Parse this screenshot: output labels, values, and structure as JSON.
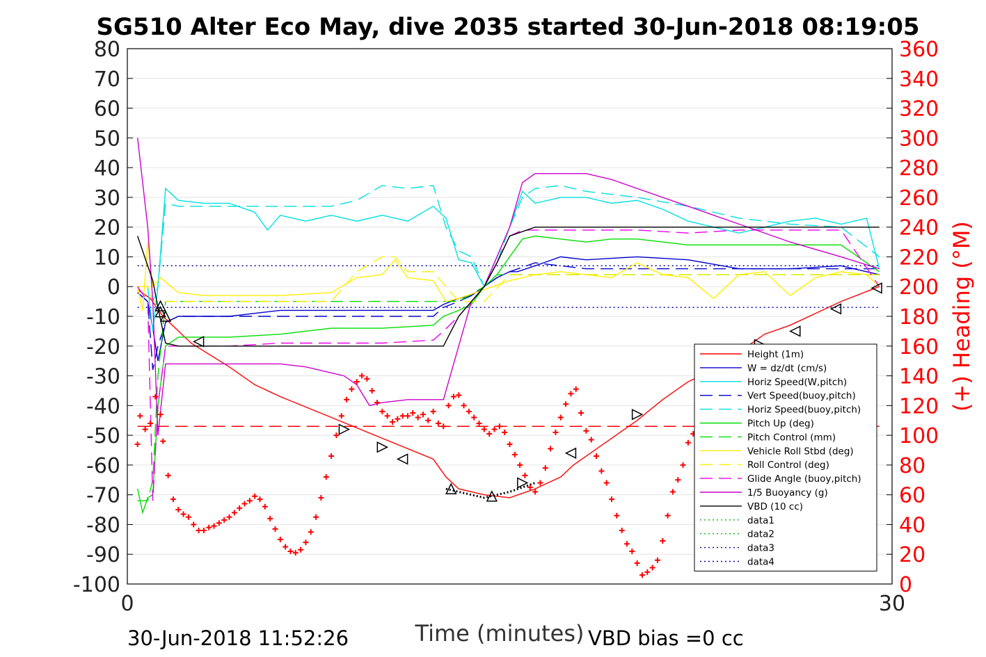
{
  "chart_data": {
    "type": "line",
    "title": "SG510 Alter Eco May, dive 2035 started 30-Jun-2018 08:19:05",
    "xlabel": "Time (minutes)",
    "ylabel_right": "(+) Heading (°M)",
    "xlim": [
      0,
      30
    ],
    "ylim": [
      -100,
      80
    ],
    "ylim_right": [
      0,
      360
    ],
    "x_ticks": [
      "0",
      "30"
    ],
    "y_ticks": [
      "80",
      "70",
      "60",
      "50",
      "40",
      "30",
      "20",
      "10",
      "0",
      "-10",
      "-20",
      "-30",
      "-40",
      "-50",
      "-60",
      "-70",
      "-80",
      "-90",
      "-100"
    ],
    "y_right_ticks": [
      "360",
      "340",
      "320",
      "300",
      "280",
      "260",
      "240",
      "220",
      "200",
      "180",
      "160",
      "140",
      "120",
      "100",
      "80",
      "60",
      "40",
      "20",
      "0"
    ],
    "grid": "horizontal",
    "legend_placement": "lower-right",
    "footer_left": "30-Jun-2018 11:52:26",
    "footer_right": "VBD bias =0 cc",
    "legend": [
      {
        "label": "Height (1m)",
        "color": "#ff0000",
        "style": "solid"
      },
      {
        "label": "W = dz/dt (cm/s)",
        "color": "#0000cc",
        "style": "solid"
      },
      {
        "label": "Horiz Speed(W,pitch)",
        "color": "#00e0e0",
        "style": "solid"
      },
      {
        "label": "Vert Speed(buoy,pitch)",
        "color": "#0000cc",
        "style": "dashed"
      },
      {
        "label": "Horiz Speed(buoy,pitch)",
        "color": "#00e0e0",
        "style": "dashed"
      },
      {
        "label": "Pitch Up (deg)",
        "color": "#00dd00",
        "style": "solid"
      },
      {
        "label": "Pitch Control (mm)",
        "color": "#00dd00",
        "style": "dashed"
      },
      {
        "label": "Vehicle Roll Stbd (deg)",
        "color": "#ffee00",
        "style": "solid"
      },
      {
        "label": "Roll Control (deg)",
        "color": "#ffee00",
        "style": "dashed"
      },
      {
        "label": "Glide Angle (buoy,pitch)",
        "color": "#ee00ee",
        "style": "dashed"
      },
      {
        "label": "1/5 Buoyancy (g)",
        "color": "#cc00cc",
        "style": "solid"
      },
      {
        "label": "VBD (10 cc)",
        "color": "#000000",
        "style": "solid"
      },
      {
        "label": "data1",
        "color": "#00bb00",
        "style": "dotted"
      },
      {
        "label": "data2",
        "color": "#00bb00",
        "style": "dotted"
      },
      {
        "label": "data3",
        "color": "#000099",
        "style": "dotted"
      },
      {
        "label": "data4",
        "color": "#0000cc",
        "style": "dotted"
      }
    ],
    "series": [
      {
        "name": "Height (1m)",
        "color": "#ff0000",
        "style": "solid",
        "x": [
          0.4,
          0.9,
          1.4,
          2.5,
          4,
          5,
          6,
          8,
          10,
          12,
          12.5,
          13,
          14,
          15,
          16,
          17,
          17.5,
          18,
          19,
          20,
          21,
          22,
          23,
          24,
          25,
          26,
          27,
          28,
          29.5
        ],
        "y": [
          -1,
          -4,
          -10,
          -19,
          -27,
          -33,
          -37,
          -44,
          -51,
          -58,
          -64,
          -68,
          -70,
          -71,
          -68,
          -64,
          -60,
          -57,
          -51,
          -45,
          -38,
          -32,
          -28,
          -22,
          -16,
          -13,
          -9,
          -5,
          0
        ]
      },
      {
        "name": "W = dz/dt (cm/s)",
        "color": "#0000cc",
        "style": "solid",
        "x": [
          0.4,
          0.8,
          1.0,
          1.2,
          1.5,
          2,
          4,
          6,
          8,
          10,
          12,
          12.4,
          13,
          13.5,
          14,
          14.5,
          15,
          15.3,
          16,
          17,
          18,
          20,
          22,
          24,
          26,
          28,
          29.5
        ],
        "y": [
          -2,
          -5,
          -14,
          -25,
          -12,
          -10,
          -10,
          -8,
          -8,
          -8,
          -8,
          -6,
          -4,
          -3,
          0,
          3,
          5,
          5,
          7,
          10,
          9,
          10,
          9,
          6,
          6,
          7,
          4
        ]
      },
      {
        "name": "Horiz Speed(W,pitch)",
        "color": "#00e0e0",
        "style": "solid",
        "x": [
          0.4,
          0.8,
          1.0,
          1.2,
          1.5,
          2,
          3,
          4,
          5,
          5.5,
          6,
          7,
          8,
          9,
          10,
          11,
          12,
          12.5,
          13,
          13.5,
          14,
          14.5,
          15,
          15.5,
          16,
          17,
          18,
          19,
          20,
          21,
          22,
          23,
          24,
          25,
          26,
          27,
          28,
          29,
          29.5
        ],
        "y": [
          0,
          0,
          -15,
          0,
          33,
          29,
          28,
          28,
          25,
          19,
          24,
          22,
          24,
          22,
          24,
          22,
          27,
          23,
          9,
          8,
          0,
          10,
          20,
          32,
          28,
          30,
          30,
          28,
          29,
          26,
          22,
          20,
          18,
          20,
          22,
          23,
          21,
          23,
          6
        ]
      },
      {
        "name": "Vert Speed(buoy,pitch)",
        "color": "#0000cc",
        "style": "dashed",
        "x": [
          0.4,
          0.8,
          1.0,
          1.2,
          1.5,
          2,
          4,
          6,
          8,
          10,
          12,
          12.4,
          13,
          13.5,
          14,
          14.5,
          15,
          16,
          17,
          18,
          20,
          22,
          24,
          26,
          28,
          29.5
        ],
        "y": [
          -2,
          -5,
          -28,
          -20,
          -12,
          -10,
          -10,
          -10,
          -10,
          -10,
          -10,
          -7,
          -5,
          -3,
          0,
          3,
          5,
          8,
          7,
          6,
          6,
          6,
          6,
          6,
          6,
          6
        ]
      },
      {
        "name": "Horiz Speed(buoy,pitch)",
        "color": "#00e0e0",
        "style": "dashed",
        "x": [
          0.4,
          0.8,
          1.0,
          1.2,
          1.5,
          2,
          4,
          6,
          8,
          9,
          10,
          11,
          12,
          12.5,
          13,
          13.5,
          14,
          14.5,
          15,
          15.5,
          16,
          17,
          18,
          20,
          22,
          24,
          26,
          28,
          29.5
        ],
        "y": [
          0,
          0,
          -5,
          0,
          28,
          27,
          27,
          27,
          27,
          29,
          34,
          33,
          34,
          20,
          12,
          10,
          0,
          8,
          20,
          30,
          33,
          34,
          32,
          30,
          27,
          23,
          21,
          20,
          10
        ]
      },
      {
        "name": "Pitch Up (deg)",
        "color": "#00dd00",
        "style": "solid",
        "x": [
          0.4,
          0.6,
          0.8,
          1.0,
          1.2,
          1.5,
          2,
          4,
          6,
          8,
          10,
          12,
          12.4,
          13,
          13.5,
          14,
          14.5,
          15,
          15.5,
          16,
          17,
          18,
          19,
          20,
          22,
          24,
          26,
          28,
          29.5
        ],
        "y": [
          -68,
          -76,
          -71,
          -70,
          -40,
          -20,
          -17,
          -17,
          -16,
          -14,
          -14,
          -13,
          -10,
          -8,
          -6,
          0,
          4,
          10,
          16,
          17,
          16,
          15,
          16,
          16,
          14,
          14,
          14,
          14,
          5
        ]
      },
      {
        "name": "Pitch Control (mm)",
        "color": "#00dd00",
        "style": "dashed",
        "x": [
          0.4,
          0.8,
          1.0,
          1.2,
          1.5,
          2,
          12,
          12.4,
          13,
          14,
          14.5,
          15,
          16,
          17,
          18,
          20,
          22,
          24,
          26,
          28,
          29.5
        ],
        "y": [
          -72,
          -72,
          -65,
          -30,
          -5,
          -5,
          -5,
          -5,
          -5,
          0,
          4,
          4,
          4,
          4,
          4,
          4,
          4,
          4,
          4,
          4,
          4
        ]
      },
      {
        "name": "Vehicle Roll Stbd (deg)",
        "color": "#ffee00",
        "style": "solid",
        "x": [
          0.4,
          0.6,
          0.8,
          1.0,
          1.3,
          2,
          3,
          4,
          6,
          8,
          9,
          10,
          10.5,
          11,
          12,
          12.5,
          13,
          14,
          15,
          16,
          17,
          18,
          19,
          20,
          21,
          22,
          23,
          24,
          25,
          26,
          27,
          28,
          29,
          29.5
        ],
        "y": [
          0,
          -8,
          15,
          0,
          3,
          -2,
          -3,
          -3,
          -3,
          -2,
          3,
          4,
          9,
          3,
          2,
          -5,
          -4,
          -1,
          2,
          4,
          5,
          4,
          3,
          8,
          4,
          3,
          -4,
          4,
          5,
          -3,
          3,
          5,
          4,
          0
        ]
      },
      {
        "name": "Roll Control (deg)",
        "color": "#ffee00",
        "style": "dashed",
        "x": [
          0.4,
          0.8,
          1.0,
          1.2,
          2,
          4,
          6,
          8,
          9,
          10,
          10.5,
          11,
          12,
          13,
          14,
          15,
          16,
          18,
          20,
          22,
          24,
          26,
          28,
          29.5
        ],
        "y": [
          0,
          0,
          -5,
          -5,
          -5,
          -5,
          -5,
          -5,
          5,
          10,
          10,
          5,
          5,
          -5,
          -5,
          4,
          4,
          4,
          4,
          4,
          4,
          4,
          4,
          4
        ]
      },
      {
        "name": "Glide Angle (buoy,pitch)",
        "color": "#ee00ee",
        "style": "dashed",
        "x": [
          0.4,
          0.8,
          1.0,
          1.2,
          1.5,
          2,
          4,
          6,
          8,
          10,
          12,
          12.4,
          13,
          13.5,
          14,
          14.5,
          15,
          15.5,
          16,
          18,
          20,
          22,
          24,
          26,
          28,
          29.5
        ],
        "y": [
          0,
          -5,
          -72,
          -40,
          -20,
          -20,
          -20,
          -19,
          -19,
          -19,
          -18,
          -15,
          -10,
          -5,
          0,
          8,
          17,
          19,
          19,
          19,
          19,
          18,
          19,
          19,
          19,
          0
        ]
      },
      {
        "name": "1/5 Buoyancy (g)",
        "color": "#cc00cc",
        "style": "solid",
        "x": [
          0.4,
          0.8,
          1.0,
          1.2,
          1.5,
          2,
          3,
          4,
          5,
          6,
          7,
          8,
          8.5,
          9,
          9.5,
          10,
          11,
          12,
          12.4,
          13,
          13.5,
          14,
          14.5,
          15,
          15.5,
          16,
          17,
          18,
          19,
          20,
          22,
          24,
          26,
          28,
          29.5
        ],
        "y": [
          50,
          20,
          -5,
          -50,
          -26,
          -26,
          -26,
          -26,
          -26,
          -26,
          -27,
          -29,
          -30,
          -33,
          -40,
          -39,
          -38,
          -38,
          -38,
          -20,
          -5,
          0,
          10,
          20,
          35,
          38,
          38,
          38,
          36,
          33,
          27,
          21,
          15,
          10,
          6
        ]
      },
      {
        "name": "VBD (10 cc)",
        "color": "#000000",
        "style": "solid",
        "x": [
          0.4,
          1.0,
          1.2,
          1.5,
          2,
          4,
          6,
          8,
          10,
          12,
          12.4,
          13,
          14,
          14.5,
          15,
          16,
          17,
          18,
          20,
          22,
          24,
          26,
          28,
          29.5
        ],
        "y": [
          17,
          2,
          -7,
          -19,
          -20,
          -20,
          -20,
          -20,
          -20,
          -20,
          -20,
          -10,
          0,
          8,
          17,
          20,
          20,
          20,
          20,
          20,
          20,
          20,
          20,
          20
        ]
      }
    ],
    "reference_lines": [
      {
        "name": "data3",
        "y": 7,
        "color": "#000099",
        "style": "dotted"
      },
      {
        "name": "data4",
        "y": -7,
        "color": "#0000cc",
        "style": "dotted"
      },
      {
        "name": "Heading target",
        "y": -47,
        "color": "#ff0000",
        "style": "dashed"
      }
    ],
    "apogee_segment": {
      "name": "data1",
      "x": [
        12.5,
        13,
        14,
        15,
        16
      ],
      "y": [
        -68,
        -69,
        -71,
        -69,
        -66
      ],
      "color": "#000000",
      "style": "dotted"
    },
    "markers": {
      "name": "Turn markers",
      "color": "#000000",
      "points": [
        {
          "x": 1.3,
          "y": -6.5,
          "shape": "up"
        },
        {
          "x": 1.3,
          "y": -8.5,
          "shape": "up"
        },
        {
          "x": 1.5,
          "y": -10,
          "shape": "up"
        },
        {
          "x": 2.8,
          "y": -18.5,
          "shape": "left"
        },
        {
          "x": 8.5,
          "y": -48,
          "shape": "right"
        },
        {
          "x": 10,
          "y": -54,
          "shape": "right"
        },
        {
          "x": 10.8,
          "y": -58,
          "shape": "left"
        },
        {
          "x": 12.7,
          "y": -68,
          "shape": "up"
        },
        {
          "x": 14.3,
          "y": -70.5,
          "shape": "up"
        },
        {
          "x": 15.5,
          "y": -66,
          "shape": "right"
        },
        {
          "x": 17.4,
          "y": -56,
          "shape": "left"
        },
        {
          "x": 20,
          "y": -43,
          "shape": "right"
        },
        {
          "x": 24.8,
          "y": -19.5,
          "shape": "right"
        },
        {
          "x": 26.2,
          "y": -15,
          "shape": "left"
        },
        {
          "x": 27.8,
          "y": -7.5,
          "shape": "left"
        },
        {
          "x": 29.4,
          "y": -0.5,
          "shape": "left"
        }
      ]
    },
    "heading_deg": {
      "name": "Heading",
      "color": "#ff0000",
      "marker": "plus",
      "x": [
        0.4,
        0.5,
        0.7,
        0.9,
        1.1,
        1.3,
        1.4,
        1.6,
        1.8,
        2.0,
        2.2,
        2.4,
        2.6,
        2.8,
        3.0,
        3.2,
        3.4,
        3.6,
        3.8,
        4.0,
        4.2,
        4.4,
        4.6,
        4.8,
        5.0,
        5.2,
        5.4,
        5.6,
        5.8,
        6.0,
        6.2,
        6.4,
        6.6,
        6.8,
        7.0,
        7.2,
        7.4,
        7.6,
        7.8,
        8.0,
        8.2,
        8.4,
        8.6,
        8.8,
        9.0,
        9.2,
        9.4,
        9.6,
        9.8,
        10.0,
        10.2,
        10.4,
        10.6,
        10.8,
        11.0,
        11.2,
        11.4,
        11.6,
        11.8,
        12.0,
        12.2,
        12.4,
        12.6,
        12.8,
        13.0,
        13.2,
        13.4,
        13.6,
        13.8,
        14.0,
        14.2,
        14.4,
        14.6,
        14.8,
        15.0,
        15.2,
        15.4,
        15.6,
        15.8,
        16.0,
        16.2,
        16.4,
        16.6,
        16.8,
        17.0,
        17.2,
        17.4,
        17.6,
        17.8,
        18.0,
        18.2,
        18.4,
        18.6,
        18.8,
        19.0,
        19.2,
        19.4,
        19.6,
        19.8,
        20.0,
        20.2,
        20.4,
        20.6,
        20.8,
        21.0,
        21.2,
        21.4,
        21.6,
        21.8,
        22.0,
        22.2,
        22.4,
        22.6,
        22.8,
        23.0
      ],
      "y": [
        94,
        113,
        104,
        108,
        126,
        114,
        96,
        73,
        57,
        50,
        47,
        45,
        40,
        36,
        36,
        38,
        39,
        41,
        43,
        45,
        48,
        51,
        54,
        56,
        59,
        57,
        52,
        44,
        37,
        30,
        25,
        22,
        21,
        23,
        28,
        35,
        45,
        58,
        72,
        86,
        100,
        113,
        124,
        131,
        136,
        140,
        138,
        130,
        122,
        116,
        113,
        109,
        111,
        113,
        113,
        115,
        112,
        114,
        110,
        116,
        108,
        106,
        120,
        126,
        127,
        120,
        116,
        112,
        108,
        104,
        101,
        104,
        106,
        102,
        94,
        87,
        80,
        73,
        65,
        62,
        68,
        78,
        91,
        102,
        112,
        121,
        128,
        131,
        115,
        103,
        97,
        86,
        76,
        68,
        57,
        46,
        36,
        27,
        22,
        14,
        6,
        8,
        11,
        16,
        29,
        46,
        62,
        70,
        80,
        95,
        101,
        110,
        112,
        114,
        116
      ]
    }
  }
}
